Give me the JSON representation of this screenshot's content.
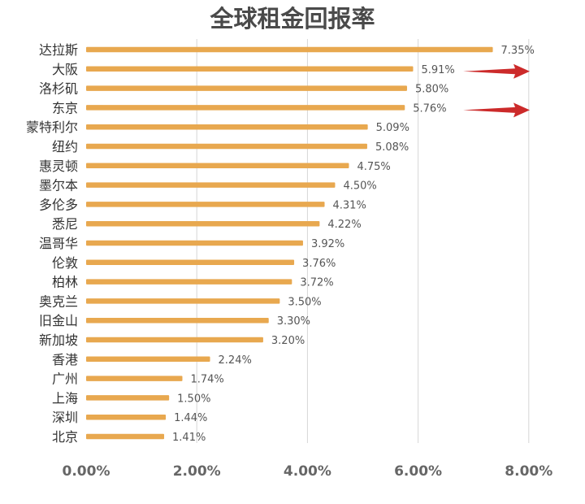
{
  "chart_data": {
    "type": "bar",
    "orientation": "horizontal",
    "title": "全球租金回报率",
    "categories": [
      "达拉斯",
      "大阪",
      "洛杉矶",
      "东京",
      "蒙特利尔",
      "纽约",
      "惠灵顿",
      "墨尔本",
      "多伦多",
      "悉尼",
      "温哥华",
      "伦敦",
      "柏林",
      "奥克兰",
      "旧金山",
      "新加坡",
      "香港",
      "广州",
      "上海",
      "深圳",
      "北京"
    ],
    "values": [
      7.35,
      5.91,
      5.8,
      5.76,
      5.09,
      5.08,
      4.75,
      4.5,
      4.31,
      4.22,
      3.92,
      3.76,
      3.72,
      3.5,
      3.3,
      3.2,
      2.24,
      1.74,
      1.5,
      1.44,
      1.41
    ],
    "value_labels": [
      "7.35%",
      "5.91%",
      "5.80%",
      "5.76%",
      "5.09%",
      "5.08%",
      "4.75%",
      "4.50%",
      "4.31%",
      "4.22%",
      "3.92%",
      "3.76%",
      "3.72%",
      "3.50%",
      "3.30%",
      "3.20%",
      "2.24%",
      "1.74%",
      "1.50%",
      "1.44%",
      "1.41%"
    ],
    "x_ticks": [
      0,
      2,
      4,
      6,
      8
    ],
    "x_tick_labels": [
      "0.00%",
      "2.00%",
      "4.00%",
      "6.00%",
      "8.00%"
    ],
    "xlim": [
      0,
      8
    ],
    "grid": "vertical",
    "legend": "none",
    "highlight_arrows": [
      "大阪",
      "东京"
    ],
    "colors": {
      "bar": "#e8a84f",
      "title": "#4a4a4a",
      "label": "#333333",
      "value": "#555555",
      "tick": "#666666",
      "grid": "#d6d6d6",
      "arrow": "#cc2a2a"
    }
  }
}
